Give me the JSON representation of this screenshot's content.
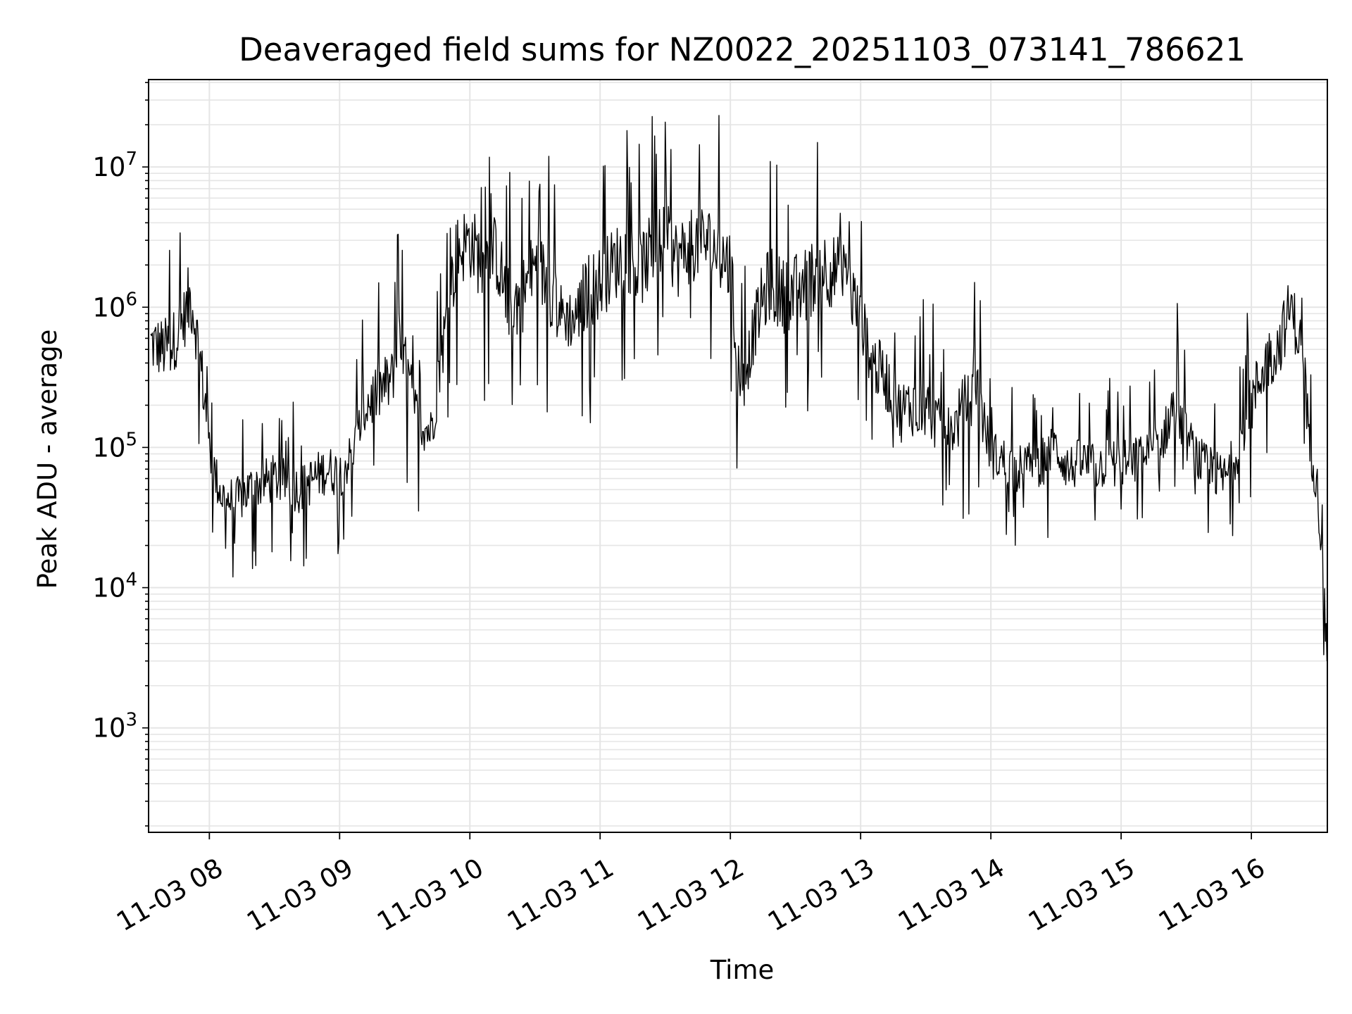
{
  "chart_data": {
    "type": "line",
    "title": "Deaveraged field sums for NZ0022_20251103_073141_786621",
    "xlabel": "Time",
    "ylabel": "Peak ADU - average",
    "yscale": "log",
    "xlim": [
      "11-03 07:32",
      "11-03 16:35"
    ],
    "ylim": [
      180,
      42000000
    ],
    "grid": true,
    "line_color": "#000000",
    "grid_color": "#e5e5e5",
    "x_ticks": [
      {
        "label": "11-03 08",
        "hour": 8
      },
      {
        "label": "11-03 09",
        "hour": 9
      },
      {
        "label": "11-03 10",
        "hour": 10
      },
      {
        "label": "11-03 11",
        "hour": 11
      },
      {
        "label": "11-03 12",
        "hour": 12
      },
      {
        "label": "11-03 13",
        "hour": 13
      },
      {
        "label": "11-03 14",
        "hour": 14
      },
      {
        "label": "11-03 15",
        "hour": 15
      },
      {
        "label": "11-03 16",
        "hour": 16
      }
    ],
    "y_ticks": [
      {
        "base": "10",
        "exp": "3",
        "value": 1000
      },
      {
        "base": "10",
        "exp": "4",
        "value": 10000
      },
      {
        "base": "10",
        "exp": "5",
        "value": 100000
      },
      {
        "base": "10",
        "exp": "6",
        "value": 1000000
      },
      {
        "base": "10",
        "exp": "7",
        "value": 10000000
      }
    ],
    "series": [
      {
        "note_units": "x in hours of day 11-03, y in ADU",
        "x": [
          7.55,
          7.65,
          7.72,
          7.8,
          7.86,
          7.92,
          7.97,
          8.0,
          8.05,
          8.1,
          8.2,
          8.3,
          8.4,
          8.5,
          8.6,
          8.7,
          8.8,
          8.9,
          9.0,
          9.1,
          9.2,
          9.3,
          9.4,
          9.45,
          9.5,
          9.6,
          9.7,
          9.8,
          9.9,
          10.0,
          10.1,
          10.2,
          10.3,
          10.4,
          10.5,
          10.6,
          10.7,
          10.8,
          10.9,
          11.0,
          11.1,
          11.2,
          11.3,
          11.4,
          11.5,
          11.6,
          11.7,
          11.8,
          11.9,
          12.0,
          12.05,
          12.1,
          12.2,
          12.3,
          12.4,
          12.5,
          12.6,
          12.7,
          12.8,
          12.9,
          13.0,
          13.1,
          13.2,
          13.3,
          13.4,
          13.5,
          13.6,
          13.7,
          13.8,
          13.9,
          14.0,
          14.1,
          14.2,
          14.3,
          14.4,
          14.5,
          14.6,
          14.7,
          14.8,
          14.9,
          15.0,
          15.1,
          15.2,
          15.3,
          15.4,
          15.5,
          15.6,
          15.7,
          15.8,
          15.9,
          16.0,
          16.1,
          16.2,
          16.25,
          16.3,
          16.35,
          16.4,
          16.45,
          16.5,
          16.55,
          16.58
        ],
        "y": [
          550000,
          500000,
          560000,
          800000,
          1200000,
          500000,
          200000,
          100000,
          60000,
          45000,
          40000,
          50000,
          55000,
          60000,
          55000,
          50000,
          60000,
          70000,
          65000,
          90000,
          200000,
          250000,
          300000,
          600000,
          400000,
          150000,
          130000,
          600000,
          2500000,
          3000000,
          2000000,
          2500000,
          1000000,
          1200000,
          2000000,
          1500000,
          900000,
          800000,
          1300000,
          1500000,
          2000000,
          2500000,
          1800000,
          2500000,
          3000000,
          2200000,
          2800000,
          3000000,
          2500000,
          2000000,
          400000,
          300000,
          800000,
          1500000,
          1200000,
          1300000,
          1500000,
          2000000,
          1800000,
          1500000,
          800000,
          400000,
          300000,
          180000,
          200000,
          200000,
          150000,
          130000,
          200000,
          250000,
          90000,
          80000,
          70000,
          75000,
          80000,
          100000,
          70000,
          80000,
          70000,
          80000,
          75000,
          80000,
          90000,
          100000,
          200000,
          120000,
          80000,
          65000,
          60000,
          100000,
          200000,
          400000,
          500000,
          700000,
          1000000,
          700000,
          400000,
          100000,
          60000,
          15000,
          3000
        ]
      }
    ]
  }
}
